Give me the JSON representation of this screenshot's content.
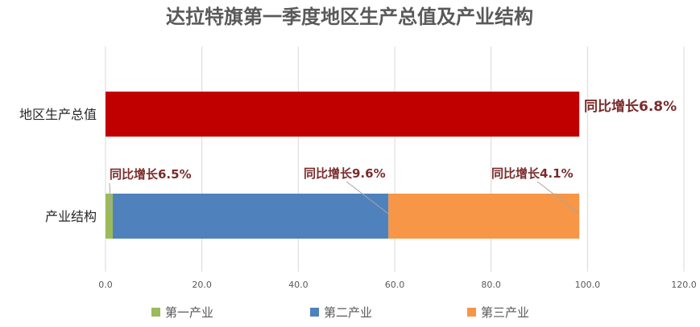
{
  "chart_data": {
    "type": "bar",
    "orientation": "horizontal",
    "title": "达拉特旗第一季度地区生产总值及产业结构",
    "categories": [
      "地区生产总值",
      "产业结构"
    ],
    "series": [
      {
        "name": "第一产业",
        "color": "#9BBB59",
        "values": [
          null,
          1.5
        ]
      },
      {
        "name": "第二产业",
        "color": "#4F81BD",
        "values": [
          null,
          57.2
        ]
      },
      {
        "name": "第三产业",
        "color": "#F79646",
        "values": [
          null,
          39.6
        ]
      }
    ],
    "total_bar": {
      "category": "地区生产总值",
      "value": 98.3,
      "color": "#C00000"
    },
    "xlim": [
      0,
      120
    ],
    "xticks": [
      "0.0",
      "20.0",
      "40.0",
      "60.0",
      "80.0",
      "100.0",
      "120.0"
    ],
    "grid": true,
    "legend_position": "bottom",
    "annotations": [
      {
        "text": "同比增长6.8%",
        "target": "地区生产总值"
      },
      {
        "text": "同比增长6.5%",
        "target": "第一产业"
      },
      {
        "text": "同比增长9.6%",
        "target": "第二产业"
      },
      {
        "text": "同比增长4.1%",
        "target": "第三产业"
      }
    ],
    "annotation_color": "#7B2C2C"
  }
}
